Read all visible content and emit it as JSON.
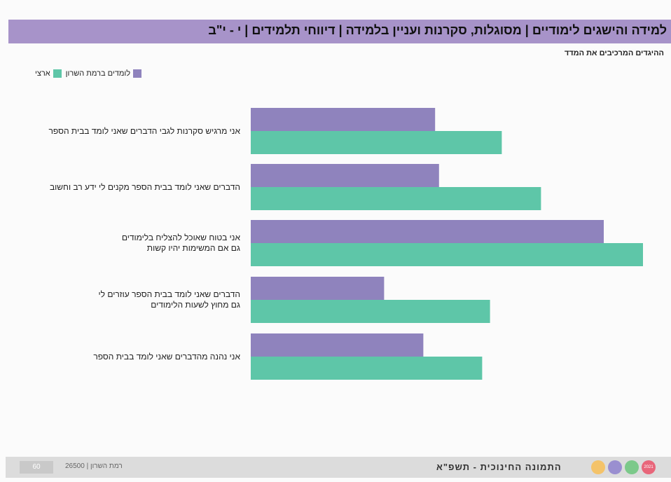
{
  "header": {
    "title": "למידה והישגים לימודיים | מסוגלות, סקרנות ועניין בלמידה | דיווחי תלמידים | י - י\"ב"
  },
  "subtitle": "ההיגדים המרכיבים את המדד",
  "legend": {
    "series_a_label": "לומדים ברמת השרון",
    "series_b_label": "ארצי"
  },
  "colors": {
    "series_a": "#8f83bd",
    "series_b": "#5ec6a8",
    "header_band": "#a793c9"
  },
  "chart_data": {
    "type": "bar",
    "orientation": "horizontal",
    "categories": [
      [
        "אני מרגיש סקרנות לגבי הדברים שאני לומד בבית הספר"
      ],
      [
        "הדברים שאני לומד בבית הספר מקנים לי ידע רב וחשוב"
      ],
      [
        "אני בטוח שאוכל להצליח בלימודים",
        "גם אם המשימות יהיו קשות"
      ],
      [
        "הדברים שאני לומד בבית הספר עוזרים לי",
        "גם מחוץ לשעות הלימודים"
      ],
      [
        "אני נהנה מהדברים שאני לומד בבית הספר"
      ]
    ],
    "series": [
      {
        "name": "לומדים ברמת השרון",
        "values": [
          47,
          48,
          90,
          34,
          44
        ]
      },
      {
        "name": "ארצי",
        "values": [
          64,
          74,
          100,
          61,
          59
        ]
      }
    ],
    "xlim": [
      0,
      100
    ],
    "grid": false,
    "legend_position": "top-left"
  },
  "footer": {
    "title": "התמונה החינוכית - תשפ\"א",
    "left_text": "רמת השרון | 26500",
    "page_number": "60",
    "dot_labels": [
      "",
      "",
      "",
      "2021"
    ],
    "dot_colors": [
      "#f4c36a",
      "#9a8fd0",
      "#7cc98a",
      "#e8667a"
    ]
  }
}
